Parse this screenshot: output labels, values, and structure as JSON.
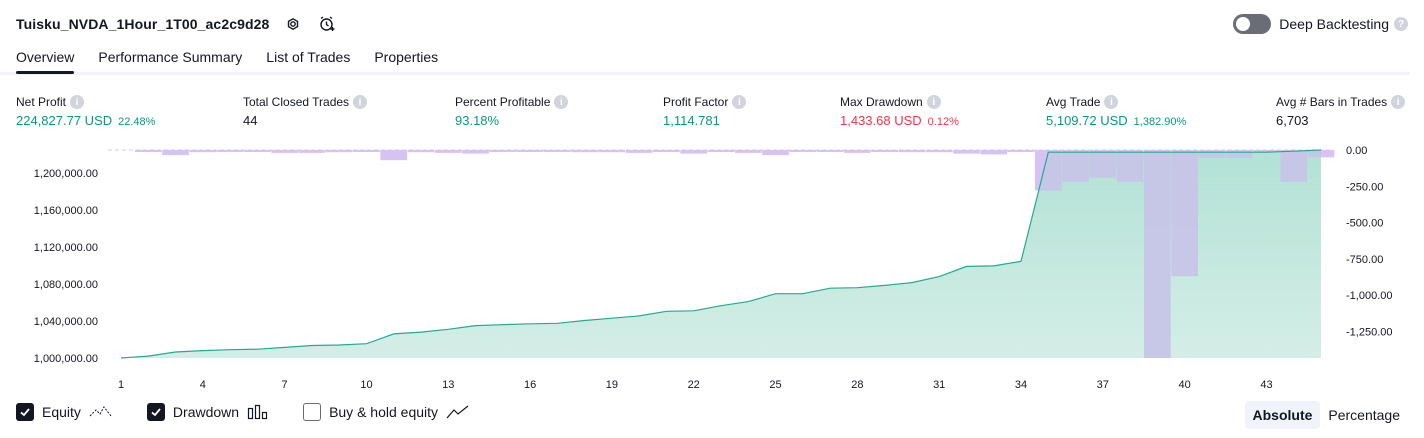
{
  "header": {
    "strategy_name": "Tuisku_NVDA_1Hour_1T00_ac2c9d28",
    "deep_backtesting_label": "Deep Backtesting",
    "deep_backtesting_enabled": false
  },
  "tabs": [
    {
      "label": "Overview",
      "active": true
    },
    {
      "label": "Performance Summary",
      "active": false
    },
    {
      "label": "List of Trades",
      "active": false
    },
    {
      "label": "Properties",
      "active": false
    }
  ],
  "metrics": {
    "net_profit": {
      "label": "Net Profit",
      "value": "224,827.77 USD",
      "sub": "22.48%"
    },
    "total_closed_trades": {
      "label": "Total Closed Trades",
      "value": "44"
    },
    "percent_profitable": {
      "label": "Percent Profitable",
      "value": "93.18%"
    },
    "profit_factor": {
      "label": "Profit Factor",
      "value": "1,114.781"
    },
    "max_drawdown": {
      "label": "Max Drawdown",
      "value": "1,433.68 USD",
      "sub": "0.12%"
    },
    "avg_trade": {
      "label": "Avg Trade",
      "value": "5,109.72 USD",
      "sub": "1,382.90%"
    },
    "avg_bars": {
      "label": "Avg # Bars in Trades",
      "value": "6,703"
    }
  },
  "colors": {
    "positive": "#089981",
    "negative": "#f23645",
    "equity_line": "#22ab94",
    "equity_fill": "#d7f0ea",
    "drawdown_fill": "#d4c0f2",
    "drawdown_overlap": "#acb4dd"
  },
  "chart_data": {
    "type": "area",
    "equity": {
      "name": "Equity",
      "x": [
        1,
        2,
        3,
        4,
        5,
        6,
        7,
        8,
        9,
        10,
        11,
        12,
        13,
        14,
        15,
        16,
        17,
        18,
        19,
        20,
        21,
        22,
        23,
        24,
        25,
        26,
        27,
        28,
        29,
        30,
        31,
        32,
        33,
        34,
        35,
        36,
        37,
        38,
        39,
        40,
        41,
        42,
        43,
        44,
        45
      ],
      "values": [
        1000000,
        1002000,
        1006500,
        1008000,
        1009000,
        1009500,
        1011500,
        1013500,
        1014000,
        1015500,
        1026000,
        1028000,
        1031000,
        1035000,
        1036000,
        1037000,
        1037500,
        1040500,
        1043000,
        1045500,
        1050500,
        1051000,
        1056500,
        1061000,
        1069500,
        1069500,
        1075500,
        1076000,
        1078500,
        1081500,
        1088000,
        1099000,
        1099500,
        1104500,
        1222500,
        1222500,
        1222500,
        1222500,
        1222500,
        1222500,
        1222500,
        1222500,
        1222500,
        1223500,
        1224827.77
      ]
    },
    "drawdown": {
      "name": "Drawdown",
      "x": [
        1,
        2,
        3,
        4,
        5,
        6,
        7,
        8,
        9,
        10,
        11,
        12,
        13,
        14,
        15,
        16,
        17,
        18,
        19,
        20,
        21,
        22,
        23,
        24,
        25,
        26,
        27,
        28,
        29,
        30,
        31,
        32,
        33,
        34,
        35,
        36,
        37,
        38,
        39,
        40,
        41,
        42,
        43,
        44,
        45
      ],
      "values": [
        0,
        -10,
        -35,
        -15,
        -10,
        -5,
        -20,
        -20,
        -15,
        -10,
        -70,
        -15,
        -20,
        -25,
        -10,
        -10,
        -5,
        -15,
        -15,
        -20,
        -10,
        -25,
        -5,
        -20,
        -35,
        -5,
        -5,
        -20,
        -5,
        -15,
        -15,
        -25,
        -30,
        -10,
        -280,
        -220,
        -190,
        -220,
        -1433.68,
        -870,
        -55,
        -55,
        -5,
        -220,
        -50
      ]
    },
    "x_ticks": [
      1,
      4,
      7,
      10,
      13,
      16,
      19,
      22,
      25,
      28,
      31,
      34,
      37,
      40,
      43
    ],
    "equity_axis": {
      "ticks": [
        1000000,
        1040000,
        1080000,
        1120000,
        1160000,
        1200000
      ],
      "labels": [
        "1,000,000.00",
        "1,040,000.00",
        "1,080,000.00",
        "1,120,000.00",
        "1,160,000.00",
        "1,200,000.00"
      ],
      "range": [
        1000000,
        1224827.77
      ]
    },
    "drawdown_axis": {
      "ticks": [
        0,
        -250,
        -500,
        -750,
        -1000,
        -1250
      ],
      "labels": [
        "0.00",
        "-250.00",
        "-500.00",
        "-750.00",
        "-1,000.00",
        "-1,250.00"
      ],
      "range": [
        -1433.68,
        0
      ]
    },
    "grid": false
  },
  "legend": {
    "equity": {
      "label": "Equity",
      "checked": true
    },
    "drawdown": {
      "label": "Drawdown",
      "checked": true
    },
    "buy_hold": {
      "label": "Buy & hold equity",
      "checked": false
    }
  },
  "scale": {
    "absolute": "Absolute",
    "percentage": "Percentage",
    "active": "absolute"
  }
}
